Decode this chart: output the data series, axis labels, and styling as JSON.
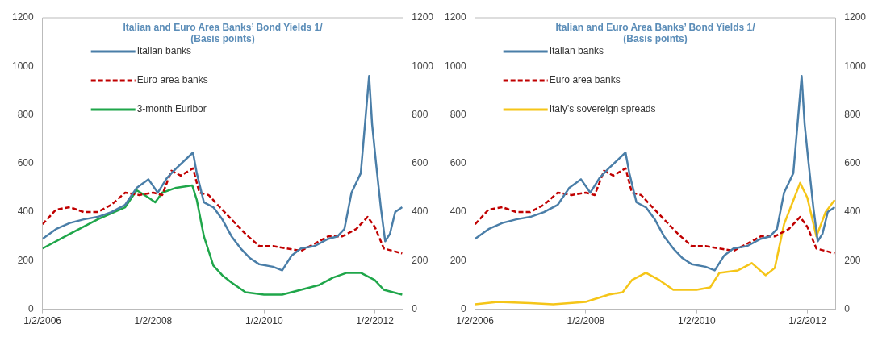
{
  "chart_data": [
    {
      "type": "line",
      "title": "Italian and Euro Area Banks’ Bond Yields 1/",
      "subtitle": "(Basis points)",
      "legend": "top left",
      "xlim": [
        "2006-01-02",
        "2012-07-05"
      ],
      "xticks": [
        {
          "value": "2006-01-02",
          "label": "1/2/2006"
        },
        {
          "value": "2008-01-02",
          "label": "1/2/2008"
        },
        {
          "value": "2010-01-02",
          "label": "1/2/2010"
        },
        {
          "value": "2012-01-02",
          "label": "1/2/2012"
        }
      ],
      "ylim": [
        0,
        1200
      ],
      "yticks": [
        0,
        200,
        400,
        600,
        800,
        1000,
        1200
      ],
      "y2lim": [
        0,
        1200
      ],
      "y2ticks": [
        0,
        200,
        400,
        600,
        800,
        1000,
        1200
      ],
      "series": [
        {
          "name": "Italian banks",
          "color": "#4a7ea8",
          "line_style": "solid",
          "x": [
            "2006-01-02",
            "2006-04-01",
            "2006-07-01",
            "2006-10-01",
            "2007-01-01",
            "2007-04-01",
            "2007-07-01",
            "2007-09-15",
            "2007-12-01",
            "2008-02-01",
            "2008-04-01",
            "2008-06-01",
            "2008-09-20",
            "2008-10-15",
            "2008-12-01",
            "2009-02-01",
            "2009-04-01",
            "2009-06-01",
            "2009-08-01",
            "2009-10-01",
            "2009-12-01",
            "2010-03-01",
            "2010-05-01",
            "2010-07-01",
            "2010-09-01",
            "2010-12-01",
            "2011-03-01",
            "2011-05-01",
            "2011-06-15",
            "2011-08-01",
            "2011-10-01",
            "2011-11-25",
            "2011-12-15",
            "2012-01-10",
            "2012-02-10",
            "2012-03-10",
            "2012-04-10",
            "2012-05-15",
            "2012-06-30"
          ],
          "values": [
            290,
            330,
            355,
            370,
            380,
            400,
            430,
            500,
            535,
            480,
            540,
            580,
            645,
            560,
            440,
            420,
            370,
            300,
            250,
            210,
            185,
            175,
            160,
            220,
            250,
            260,
            290,
            300,
            330,
            480,
            560,
            960,
            760,
            600,
            420,
            280,
            310,
            400,
            420
          ]
        },
        {
          "name": "Euro area banks",
          "color": "#c00000",
          "line_style": "dashed",
          "x": [
            "2006-01-02",
            "2006-04-01",
            "2006-07-01",
            "2006-10-01",
            "2007-01-01",
            "2007-04-01",
            "2007-07-01",
            "2007-10-01",
            "2008-01-01",
            "2008-03-01",
            "2008-05-01",
            "2008-07-01",
            "2008-09-20",
            "2008-11-01",
            "2009-01-01",
            "2009-03-01",
            "2009-06-01",
            "2009-09-01",
            "2009-12-01",
            "2010-03-01",
            "2010-06-01",
            "2010-09-01",
            "2010-12-01",
            "2011-03-01",
            "2011-06-01",
            "2011-09-01",
            "2011-11-15",
            "2012-01-01",
            "2012-03-01",
            "2012-06-30"
          ],
          "values": [
            350,
            410,
            420,
            400,
            400,
            430,
            480,
            470,
            480,
            470,
            570,
            550,
            580,
            480,
            470,
            430,
            370,
            310,
            260,
            260,
            250,
            240,
            270,
            300,
            300,
            330,
            380,
            340,
            250,
            230
          ]
        },
        {
          "name": "3-month Euribor",
          "color": "#1fa64a",
          "line_style": "solid",
          "x": [
            "2006-01-02",
            "2006-07-01",
            "2007-01-01",
            "2007-07-01",
            "2007-09-15",
            "2007-12-01",
            "2008-01-15",
            "2008-03-01",
            "2008-06-01",
            "2008-09-15",
            "2008-10-15",
            "2008-12-01",
            "2009-02-01",
            "2009-04-01",
            "2009-06-01",
            "2009-09-01",
            "2010-01-01",
            "2010-05-01",
            "2010-09-01",
            "2011-01-01",
            "2011-04-01",
            "2011-07-01",
            "2011-10-01",
            "2012-01-01",
            "2012-03-01",
            "2012-06-30"
          ],
          "values": [
            250,
            310,
            370,
            420,
            490,
            460,
            440,
            480,
            500,
            510,
            450,
            300,
            180,
            140,
            110,
            70,
            60,
            60,
            80,
            100,
            130,
            150,
            150,
            120,
            80,
            60
          ]
        }
      ]
    },
    {
      "type": "line",
      "title": "Italian and Euro Area Banks’ Bond Yields 1/",
      "subtitle": "(Basis points)",
      "legend": "top left",
      "xlim": [
        "2006-01-02",
        "2012-07-05"
      ],
      "xticks": [
        {
          "value": "2006-01-02",
          "label": "1/2/2006"
        },
        {
          "value": "2008-01-02",
          "label": "1/2/2008"
        },
        {
          "value": "2010-01-02",
          "label": "1/2/2010"
        },
        {
          "value": "2012-01-02",
          "label": "1/2/2012"
        }
      ],
      "ylim": [
        0,
        1200
      ],
      "yticks": [
        0,
        200,
        400,
        600,
        800,
        1000,
        1200
      ],
      "y2lim": [
        0,
        1200
      ],
      "y2ticks": [
        0,
        200,
        400,
        600,
        800,
        1000,
        1200
      ],
      "series": [
        {
          "name": "Italian banks",
          "color": "#4a7ea8",
          "line_style": "solid",
          "x": [
            "2006-01-02",
            "2006-04-01",
            "2006-07-01",
            "2006-10-01",
            "2007-01-01",
            "2007-04-01",
            "2007-07-01",
            "2007-09-15",
            "2007-12-01",
            "2008-02-01",
            "2008-04-01",
            "2008-06-01",
            "2008-09-20",
            "2008-10-15",
            "2008-12-01",
            "2009-02-01",
            "2009-04-01",
            "2009-06-01",
            "2009-08-01",
            "2009-10-01",
            "2009-12-01",
            "2010-03-01",
            "2010-05-01",
            "2010-07-01",
            "2010-09-01",
            "2010-12-01",
            "2011-03-01",
            "2011-05-01",
            "2011-06-15",
            "2011-08-01",
            "2011-10-01",
            "2011-11-25",
            "2011-12-15",
            "2012-01-10",
            "2012-02-10",
            "2012-03-10",
            "2012-04-10",
            "2012-05-15",
            "2012-06-30"
          ],
          "values": [
            290,
            330,
            355,
            370,
            380,
            400,
            430,
            500,
            535,
            480,
            540,
            580,
            645,
            560,
            440,
            420,
            370,
            300,
            250,
            210,
            185,
            175,
            160,
            220,
            250,
            260,
            290,
            300,
            330,
            480,
            560,
            960,
            760,
            600,
            420,
            280,
            310,
            400,
            420
          ]
        },
        {
          "name": "Euro area banks",
          "color": "#c00000",
          "line_style": "dashed",
          "x": [
            "2006-01-02",
            "2006-04-01",
            "2006-07-01",
            "2006-10-01",
            "2007-01-01",
            "2007-04-01",
            "2007-07-01",
            "2007-10-01",
            "2008-01-01",
            "2008-03-01",
            "2008-05-01",
            "2008-07-01",
            "2008-09-20",
            "2008-11-01",
            "2009-01-01",
            "2009-03-01",
            "2009-06-01",
            "2009-09-01",
            "2009-12-01",
            "2010-03-01",
            "2010-06-01",
            "2010-09-01",
            "2010-12-01",
            "2011-03-01",
            "2011-06-01",
            "2011-09-01",
            "2011-11-15",
            "2012-01-01",
            "2012-03-01",
            "2012-06-30"
          ],
          "values": [
            350,
            410,
            420,
            400,
            400,
            430,
            480,
            470,
            480,
            470,
            570,
            550,
            580,
            480,
            470,
            430,
            370,
            310,
            260,
            260,
            250,
            240,
            270,
            300,
            300,
            330,
            380,
            340,
            250,
            230
          ]
        },
        {
          "name": "Italy’s sovereign spreads",
          "color": "#f5c518",
          "line_style": "solid",
          "x": [
            "2006-01-02",
            "2006-06-01",
            "2007-01-01",
            "2007-06-01",
            "2008-01-01",
            "2008-06-01",
            "2008-09-01",
            "2008-11-01",
            "2009-02-01",
            "2009-05-01",
            "2009-08-01",
            "2010-01-01",
            "2010-04-01",
            "2010-06-01",
            "2010-10-01",
            "2011-01-01",
            "2011-04-01",
            "2011-06-01",
            "2011-08-01",
            "2011-11-15",
            "2012-01-01",
            "2012-03-01",
            "2012-05-01",
            "2012-06-30"
          ],
          "values": [
            20,
            30,
            25,
            20,
            30,
            60,
            70,
            120,
            150,
            120,
            80,
            80,
            90,
            150,
            160,
            190,
            140,
            170,
            350,
            520,
            460,
            300,
            400,
            450
          ]
        }
      ]
    }
  ]
}
